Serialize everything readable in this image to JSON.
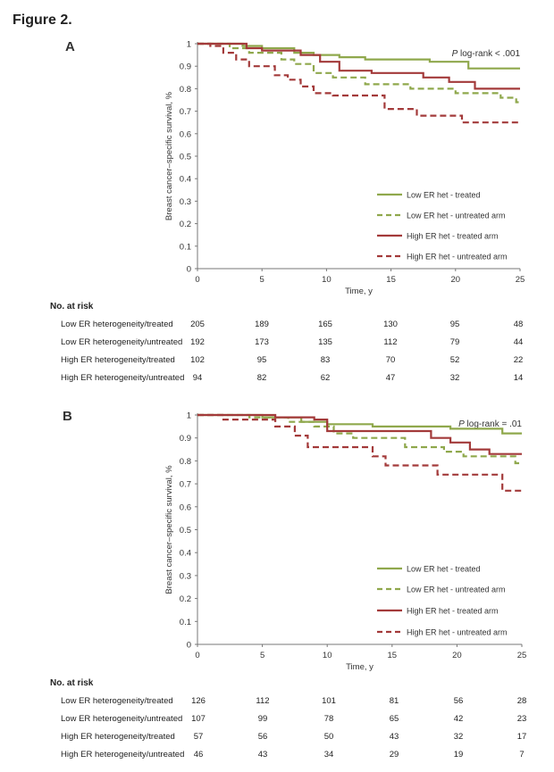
{
  "figure_title": "Figure 2.",
  "chart_data": [
    {
      "panel": "A",
      "type": "line",
      "step": true,
      "title": "",
      "xlabel": "Time, y",
      "ylabel": "Breast cancer–specific survival, %",
      "xlim": [
        0,
        25
      ],
      "ylim": [
        0,
        1
      ],
      "xticks": [
        0,
        5,
        10,
        15,
        20,
        25
      ],
      "yticks": [
        0,
        0.1,
        0.2,
        0.3,
        0.4,
        0.5,
        0.6,
        0.7,
        0.8,
        0.9,
        1
      ],
      "ytick_labels": [
        "0",
        "0.1",
        "0.2",
        "0.3",
        "0.4",
        "0.5",
        "0.6",
        "0.7",
        "0.8",
        "0.9",
        "1"
      ],
      "grid": false,
      "legend_position": "bottom-right",
      "annotation": {
        "italic": "P",
        "text": " log-rank < .001"
      },
      "series": [
        {
          "name": "Low ER het - treated",
          "color": "#8fa84c",
          "dash": "solid",
          "points": [
            [
              0,
              1
            ],
            [
              3.5,
              1
            ],
            [
              3.5,
              0.99
            ],
            [
              5,
              0.99
            ],
            [
              5,
              0.98
            ],
            [
              7.5,
              0.98
            ],
            [
              7.5,
              0.96
            ],
            [
              9,
              0.96
            ],
            [
              9,
              0.95
            ],
            [
              11,
              0.95
            ],
            [
              11,
              0.94
            ],
            [
              13,
              0.94
            ],
            [
              13,
              0.93
            ],
            [
              18,
              0.93
            ],
            [
              18,
              0.92
            ],
            [
              21,
              0.92
            ],
            [
              21,
              0.89
            ],
            [
              25,
              0.89
            ]
          ]
        },
        {
          "name": "Low ER het - untreated arm",
          "color": "#8fa84c",
          "dash": "dashed",
          "points": [
            [
              0,
              1
            ],
            [
              2.5,
              1
            ],
            [
              2.5,
              0.98
            ],
            [
              4,
              0.98
            ],
            [
              4,
              0.96
            ],
            [
              6.5,
              0.96
            ],
            [
              6.5,
              0.93
            ],
            [
              7.5,
              0.93
            ],
            [
              7.5,
              0.91
            ],
            [
              9,
              0.91
            ],
            [
              9,
              0.87
            ],
            [
              10.5,
              0.87
            ],
            [
              10.5,
              0.85
            ],
            [
              13,
              0.85
            ],
            [
              13,
              0.82
            ],
            [
              16.5,
              0.82
            ],
            [
              16.5,
              0.8
            ],
            [
              20,
              0.8
            ],
            [
              20,
              0.78
            ],
            [
              23.5,
              0.78
            ],
            [
              23.5,
              0.76
            ],
            [
              24.7,
              0.76
            ],
            [
              24.7,
              0.74
            ],
            [
              25,
              0.74
            ]
          ]
        },
        {
          "name": "High ER het - treated arm",
          "color": "#a33a3a",
          "dash": "solid",
          "points": [
            [
              0,
              1
            ],
            [
              3.8,
              1
            ],
            [
              3.8,
              0.98
            ],
            [
              5,
              0.98
            ],
            [
              5,
              0.97
            ],
            [
              8,
              0.97
            ],
            [
              8,
              0.95
            ],
            [
              9.5,
              0.95
            ],
            [
              9.5,
              0.92
            ],
            [
              11,
              0.92
            ],
            [
              11,
              0.88
            ],
            [
              13.5,
              0.88
            ],
            [
              13.5,
              0.87
            ],
            [
              17.5,
              0.87
            ],
            [
              17.5,
              0.85
            ],
            [
              19.5,
              0.85
            ],
            [
              19.5,
              0.83
            ],
            [
              21.5,
              0.83
            ],
            [
              21.5,
              0.8
            ],
            [
              25,
              0.8
            ]
          ]
        },
        {
          "name": "High ER het - untreated arm",
          "color": "#a33a3a",
          "dash": "dashed",
          "points": [
            [
              0,
              1
            ],
            [
              1,
              1
            ],
            [
              1,
              0.99
            ],
            [
              2,
              0.99
            ],
            [
              2,
              0.96
            ],
            [
              3,
              0.96
            ],
            [
              3,
              0.93
            ],
            [
              4,
              0.93
            ],
            [
              4,
              0.9
            ],
            [
              6,
              0.9
            ],
            [
              6,
              0.86
            ],
            [
              7,
              0.86
            ],
            [
              7,
              0.84
            ],
            [
              8,
              0.84
            ],
            [
              8,
              0.81
            ],
            [
              9,
              0.81
            ],
            [
              9,
              0.78
            ],
            [
              10.5,
              0.78
            ],
            [
              10.5,
              0.77
            ],
            [
              14.5,
              0.77
            ],
            [
              14.5,
              0.71
            ],
            [
              17,
              0.71
            ],
            [
              17,
              0.68
            ],
            [
              20.5,
              0.68
            ],
            [
              20.5,
              0.65
            ],
            [
              25,
              0.65
            ]
          ]
        }
      ],
      "risk_table": {
        "title": "No. at risk",
        "times": [
          0,
          5,
          10,
          15,
          20,
          25
        ],
        "rows": [
          {
            "label": "Low ER heterogeneity/treated",
            "values": [
              "205",
              "189",
              "165",
              "130",
              "95",
              "48"
            ]
          },
          {
            "label": "Low ER heterogeneity/untreated",
            "values": [
              "192",
              "173",
              "135",
              "112",
              "79",
              "44"
            ]
          },
          {
            "label": "High ER heterogeneity/treated",
            "values": [
              "102",
              "95",
              "83",
              "70",
              "52",
              "22"
            ]
          },
          {
            "label": "High ER heterogeneity/untreated",
            "values": [
              "94",
              "82",
              "62",
              "47",
              "32",
              "14"
            ]
          }
        ]
      }
    },
    {
      "panel": "B",
      "type": "line",
      "step": true,
      "title": "",
      "xlabel": "Time, y",
      "ylabel": "Breast cancer–specific survival, %",
      "xlim": [
        0,
        25
      ],
      "ylim": [
        0,
        1
      ],
      "xticks": [
        0,
        5,
        10,
        15,
        20,
        25
      ],
      "yticks": [
        0,
        0.1,
        0.2,
        0.3,
        0.4,
        0.5,
        0.6,
        0.7,
        0.8,
        0.9,
        1
      ],
      "ytick_labels": [
        "0",
        "0.1",
        "0.2",
        "0.3",
        "0.4",
        "0.5",
        "0.6",
        "0.7",
        "0.8",
        "0.9",
        "1"
      ],
      "grid": false,
      "legend_position": "bottom-right",
      "annotation": {
        "italic": "P",
        "text": " log-rank = .01"
      },
      "series": [
        {
          "name": "Low ER het - treated",
          "color": "#8fa84c",
          "dash": "solid",
          "points": [
            [
              0,
              1
            ],
            [
              5,
              1
            ],
            [
              5,
              0.99
            ],
            [
              8,
              0.99
            ],
            [
              8,
              0.97
            ],
            [
              10,
              0.97
            ],
            [
              10,
              0.96
            ],
            [
              13.5,
              0.96
            ],
            [
              13.5,
              0.95
            ],
            [
              19.5,
              0.95
            ],
            [
              19.5,
              0.94
            ],
            [
              23.5,
              0.94
            ],
            [
              23.5,
              0.92
            ],
            [
              25,
              0.92
            ]
          ]
        },
        {
          "name": "Low ER het - untreated arm",
          "color": "#8fa84c",
          "dash": "dashed",
          "points": [
            [
              0,
              1
            ],
            [
              4,
              1
            ],
            [
              4,
              0.99
            ],
            [
              7,
              0.99
            ],
            [
              7,
              0.97
            ],
            [
              9,
              0.97
            ],
            [
              9,
              0.95
            ],
            [
              10.5,
              0.95
            ],
            [
              10.5,
              0.92
            ],
            [
              12,
              0.92
            ],
            [
              12,
              0.9
            ],
            [
              16,
              0.9
            ],
            [
              16,
              0.86
            ],
            [
              19,
              0.86
            ],
            [
              19,
              0.84
            ],
            [
              20.5,
              0.84
            ],
            [
              20.5,
              0.82
            ],
            [
              24.5,
              0.82
            ],
            [
              24.5,
              0.79
            ],
            [
              25,
              0.79
            ]
          ]
        },
        {
          "name": "High ER het - treated arm",
          "color": "#a33a3a",
          "dash": "solid",
          "points": [
            [
              0,
              1
            ],
            [
              6,
              1
            ],
            [
              6,
              0.99
            ],
            [
              9,
              0.99
            ],
            [
              9,
              0.98
            ],
            [
              10,
              0.98
            ],
            [
              10,
              0.93
            ],
            [
              18,
              0.93
            ],
            [
              18,
              0.9
            ],
            [
              19.5,
              0.9
            ],
            [
              19.5,
              0.88
            ],
            [
              21,
              0.88
            ],
            [
              21,
              0.85
            ],
            [
              22.5,
              0.85
            ],
            [
              22.5,
              0.83
            ],
            [
              25,
              0.83
            ]
          ]
        },
        {
          "name": "High ER het - untreated arm",
          "color": "#a33a3a",
          "dash": "dashed",
          "points": [
            [
              0,
              1
            ],
            [
              2,
              1
            ],
            [
              2,
              0.98
            ],
            [
              6,
              0.98
            ],
            [
              6,
              0.95
            ],
            [
              7.5,
              0.95
            ],
            [
              7.5,
              0.91
            ],
            [
              8.5,
              0.91
            ],
            [
              8.5,
              0.86
            ],
            [
              13.5,
              0.86
            ],
            [
              13.5,
              0.82
            ],
            [
              14.5,
              0.82
            ],
            [
              14.5,
              0.78
            ],
            [
              18.5,
              0.78
            ],
            [
              18.5,
              0.74
            ],
            [
              23.5,
              0.74
            ],
            [
              23.5,
              0.67
            ],
            [
              25,
              0.67
            ]
          ]
        }
      ],
      "risk_table": {
        "title": "No. at risk",
        "times": [
          0,
          5,
          10,
          15,
          20,
          25
        ],
        "rows": [
          {
            "label": "Low ER heterogeneity/treated",
            "values": [
              "126",
              "112",
              "101",
              "81",
              "56",
              "28"
            ]
          },
          {
            "label": "Low ER heterogeneity/untreated",
            "values": [
              "107",
              "99",
              "78",
              "65",
              "42",
              "23"
            ]
          },
          {
            "label": "High ER heterogeneity/treated",
            "values": [
              "57",
              "56",
              "50",
              "43",
              "32",
              "17"
            ]
          },
          {
            "label": "High ER heterogeneity/untreated",
            "values": [
              "46",
              "43",
              "34",
              "29",
              "19",
              "7"
            ]
          }
        ]
      }
    }
  ]
}
